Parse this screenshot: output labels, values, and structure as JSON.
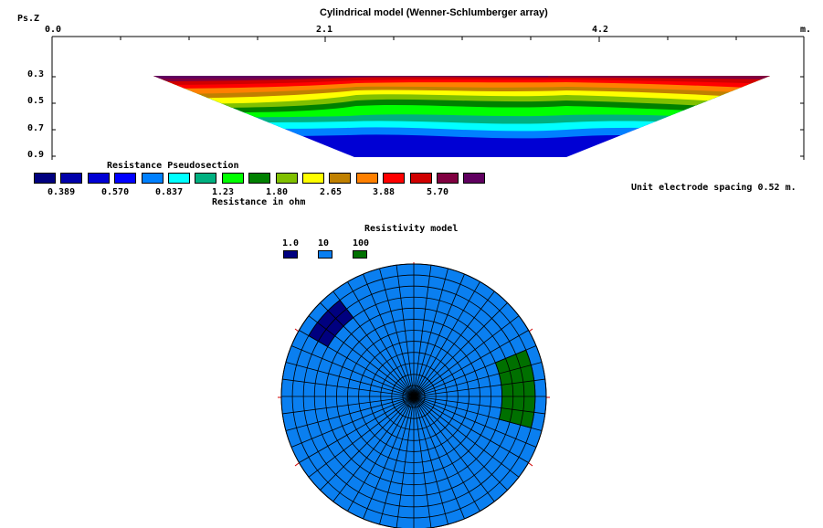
{
  "pseudosection": {
    "title": "Cylindrical model (Wenner-Schlumberger array)",
    "y_axis_label": "Ps.Z",
    "x_ticks": [
      "0.0",
      "2.1",
      "4.2",
      "m."
    ],
    "y_ticks": [
      "0.3",
      "0.5",
      "0.7",
      "0.9"
    ],
    "spacing_note": "Unit electrode spacing 0.52 m."
  },
  "legend": {
    "title": "Resistance Pseudosection",
    "units": "Resistance in ohm",
    "values": [
      "0.389",
      "0.570",
      "0.837",
      "1.23",
      "1.80",
      "2.65",
      "3.88",
      "5.70"
    ],
    "colors": [
      "#00007f",
      "#0000aa",
      "#0000d4",
      "#0000ff",
      "#0080ff",
      "#00ffff",
      "#00b080",
      "#00ff00",
      "#008000",
      "#80c000",
      "#ffff00",
      "#c08000",
      "#ff8000",
      "#ff0000",
      "#d00000",
      "#800040",
      "#600060"
    ]
  },
  "resistivity_model": {
    "title": "Resistivity model",
    "legend": [
      {
        "label": "1.0",
        "color": "#00007f"
      },
      {
        "label": "10",
        "color": "#0a7ff0"
      },
      {
        "label": "100",
        "color": "#007000"
      }
    ]
  }
}
